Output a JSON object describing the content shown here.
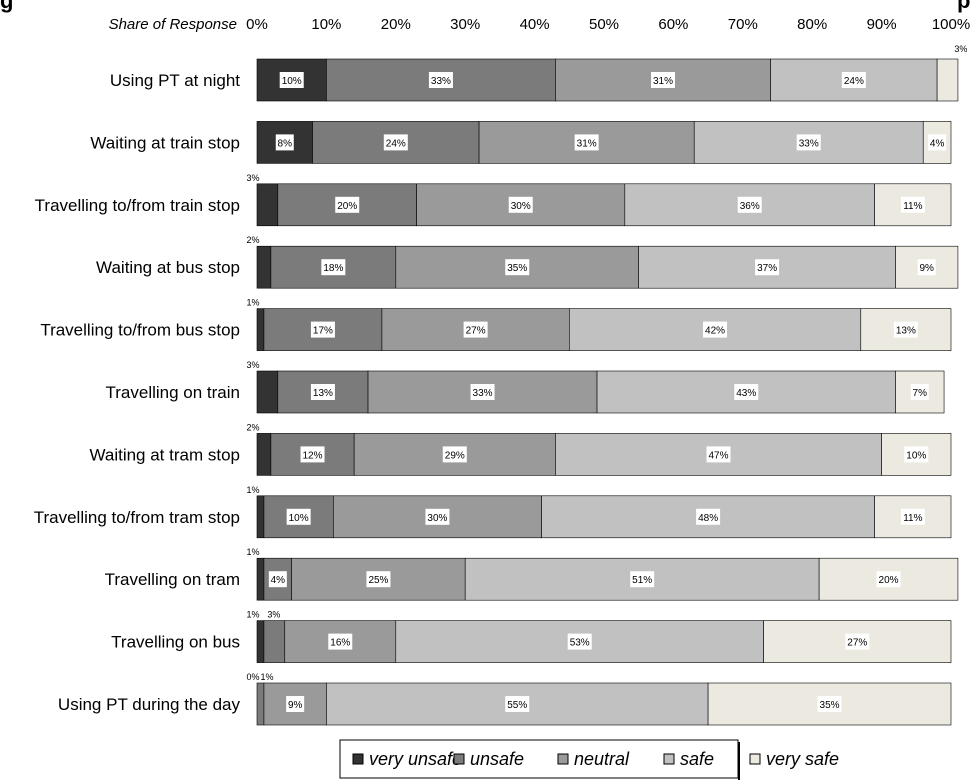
{
  "chart_data": {
    "type": "bar",
    "orientation": "horizontal",
    "stacked": true,
    "title": "g",
    "title_end": "p",
    "xlabel": "Share of Response",
    "xlim": [
      0,
      100
    ],
    "x_ticks": [
      "0%",
      "10%",
      "20%",
      "30%",
      "40%",
      "50%",
      "60%",
      "70%",
      "80%",
      "90%",
      "100%"
    ],
    "categories": [
      "Using PT at night",
      "Waiting at train stop",
      "Travelling to/from train stop",
      "Waiting at bus stop",
      "Travelling to/from bus stop",
      "Travelling on train",
      "Waiting at tram stop",
      "Travelling to/from tram stop",
      "Travelling on tram",
      "Travelling on bus",
      "Using PT during the day"
    ],
    "series": [
      {
        "name": "very unsafe",
        "color": "#333333",
        "values": [
          10,
          8,
          3,
          2,
          1,
          3,
          2,
          1,
          1,
          1,
          0
        ]
      },
      {
        "name": "unsafe",
        "color": "#7b7b7b",
        "values": [
          33,
          24,
          20,
          18,
          17,
          13,
          12,
          10,
          4,
          3,
          1
        ]
      },
      {
        "name": "neutral",
        "color": "#9a9a9a",
        "values": [
          31,
          31,
          30,
          35,
          27,
          33,
          29,
          30,
          25,
          16,
          9
        ]
      },
      {
        "name": "safe",
        "color": "#c1c1c1",
        "values": [
          24,
          33,
          36,
          37,
          42,
          43,
          47,
          48,
          51,
          53,
          55
        ]
      },
      {
        "name": "very safe",
        "color": "#ece9e0",
        "values": [
          3,
          4,
          11,
          9,
          13,
          7,
          10,
          11,
          20,
          27,
          35
        ]
      }
    ],
    "legend_position": "bottom",
    "grid": false
  }
}
